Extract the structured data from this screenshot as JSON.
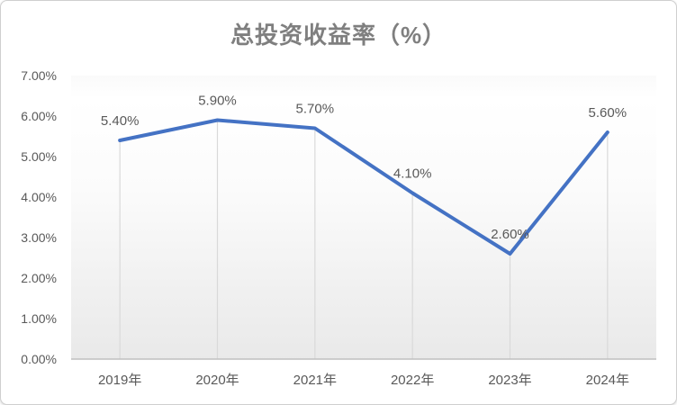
{
  "chart_data": {
    "type": "line",
    "title": "总投资收益率（%）",
    "categories": [
      "2019年",
      "2020年",
      "2021年",
      "2022年",
      "2023年",
      "2024年"
    ],
    "series": [
      {
        "values": [
          5.4,
          5.9,
          5.7,
          4.1,
          2.6,
          5.6
        ]
      }
    ],
    "data_labels": [
      "5.40%",
      "5.90%",
      "5.70%",
      "4.10%",
      "2.60%",
      "5.60%"
    ],
    "y_ticks": [
      "0.00%",
      "1.00%",
      "2.00%",
      "3.00%",
      "4.00%",
      "5.00%",
      "6.00%",
      "7.00%"
    ],
    "ylim": [
      0,
      7
    ],
    "xlabel": "",
    "ylabel": "",
    "legend_position": "none",
    "gridlines": "vertical drop lines from each data point to x-axis, no horizontal gridlines",
    "line_color": "#4472C4",
    "label_color": "#595959",
    "title_color": "#7f7f7f",
    "drop_line_color": "#d9d9d9",
    "axis_line_color": "#bfbfbf"
  }
}
